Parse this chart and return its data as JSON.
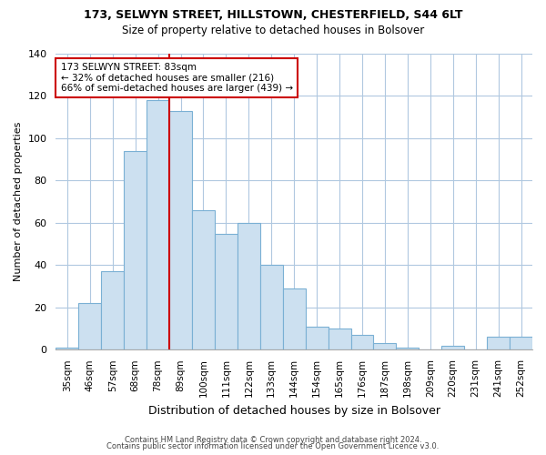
{
  "title1": "173, SELWYN STREET, HILLSTOWN, CHESTERFIELD, S44 6LT",
  "title2": "Size of property relative to detached houses in Bolsover",
  "xlabel": "Distribution of detached houses by size in Bolsover",
  "ylabel": "Number of detached properties",
  "bar_labels": [
    "35sqm",
    "46sqm",
    "57sqm",
    "68sqm",
    "78sqm",
    "89sqm",
    "100sqm",
    "111sqm",
    "122sqm",
    "133sqm",
    "144sqm",
    "154sqm",
    "165sqm",
    "176sqm",
    "187sqm",
    "198sqm",
    "209sqm",
    "220sqm",
    "231sqm",
    "241sqm",
    "252sqm"
  ],
  "bar_values": [
    1,
    22,
    37,
    94,
    118,
    113,
    66,
    55,
    60,
    40,
    29,
    11,
    10,
    7,
    3,
    1,
    0,
    2,
    0,
    6,
    6
  ],
  "bar_color": "#cce0f0",
  "bar_edge_color": "#7ab0d4",
  "vline_x": 4.5,
  "vline_color": "#cc0000",
  "annotation_text": "173 SELWYN STREET: 83sqm\n← 32% of detached houses are smaller (216)\n66% of semi-detached houses are larger (439) →",
  "annotation_box_color": "white",
  "annotation_box_edge_color": "#cc0000",
  "grid_color": "#b0c8e0",
  "ylim": [
    0,
    140
  ],
  "yticks": [
    0,
    20,
    40,
    60,
    80,
    100,
    120,
    140
  ],
  "footer1": "Contains HM Land Registry data © Crown copyright and database right 2024.",
  "footer2": "Contains public sector information licensed under the Open Government Licence v3.0.",
  "background_color": "#ffffff",
  "title_fontsize": 9,
  "subtitle_fontsize": 8.5
}
